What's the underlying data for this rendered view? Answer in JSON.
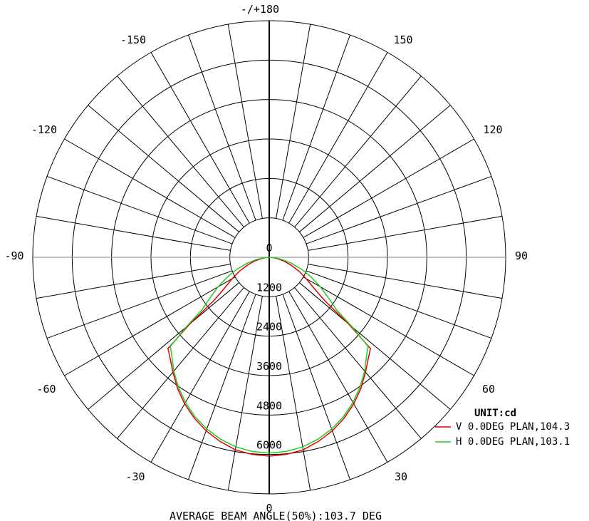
{
  "chart_data": {
    "type": "polar",
    "unit_label": "UNIT:cd",
    "footer": "AVERAGE BEAM ANGLE(50%):103.7 DEG",
    "r_max": 7200,
    "r_rings": [
      1200,
      2400,
      3600,
      4800,
      6000,
      7200
    ],
    "r_tick_labels": [
      "0",
      "1200",
      "2400",
      "3600",
      "4800",
      "6000"
    ],
    "angle_step": 10,
    "angle_labels": [
      {
        "angle": 180,
        "text": "-/+180"
      },
      {
        "angle": -150,
        "text": "-150"
      },
      {
        "angle": 150,
        "text": "150"
      },
      {
        "angle": -120,
        "text": "-120"
      },
      {
        "angle": 120,
        "text": "120"
      },
      {
        "angle": -90,
        "text": "-90"
      },
      {
        "angle": 90,
        "text": "90"
      },
      {
        "angle": -60,
        "text": "-60"
      },
      {
        "angle": 60,
        "text": "60"
      },
      {
        "angle": -30,
        "text": "-30"
      },
      {
        "angle": 30,
        "text": "30"
      },
      {
        "angle": 0,
        "text": "0"
      }
    ],
    "series": [
      {
        "name": "V 0.0DEG PLAN,104.3",
        "color": "#e00000",
        "angles": [
          0,
          5,
          10,
          15,
          20,
          25,
          30,
          35,
          40,
          45,
          48,
          50,
          52,
          55,
          60,
          65,
          70,
          75,
          80,
          85,
          90
        ],
        "values": [
          6050,
          6020,
          5950,
          5800,
          5620,
          5400,
          5150,
          4870,
          4560,
          4280,
          4150,
          3150,
          2150,
          1700,
          1300,
          1000,
          720,
          480,
          270,
          120,
          0
        ]
      },
      {
        "name": "H 0.0DEG PLAN,103.1",
        "color": "#22cc22",
        "angles": [
          0,
          5,
          10,
          15,
          20,
          25,
          30,
          35,
          40,
          45,
          48,
          50,
          52,
          55,
          60,
          65,
          70,
          75,
          80,
          85,
          90
        ],
        "values": [
          5960,
          5930,
          5860,
          5730,
          5560,
          5350,
          5100,
          4820,
          4520,
          4200,
          4050,
          3300,
          2600,
          2250,
          1800,
          1400,
          1030,
          690,
          400,
          180,
          0
        ]
      }
    ]
  }
}
